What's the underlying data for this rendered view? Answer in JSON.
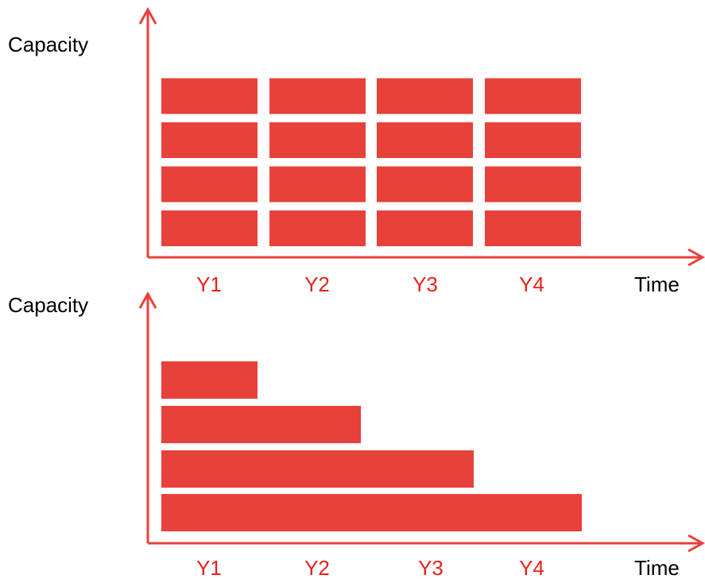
{
  "colors": {
    "accent": "#E8403A",
    "label_text": "#E8211A",
    "axis_title_text": "#000000",
    "background": "#FFFFFF"
  },
  "chart_data": [
    {
      "type": "bar",
      "description_mode": "grid",
      "ylabel": "Capacity",
      "xlabel": "Time",
      "categories": [
        "Y1",
        "Y2",
        "Y3",
        "Y4"
      ],
      "values": [
        4,
        4,
        4,
        4
      ]
    },
    {
      "type": "bar",
      "description_mode": "stacked-horizontal",
      "ylabel": "Capacity",
      "xlabel": "Time",
      "categories": [
        "Y1",
        "Y2",
        "Y3",
        "Y4"
      ],
      "bar_extents": [
        1,
        2,
        3,
        4
      ]
    }
  ]
}
